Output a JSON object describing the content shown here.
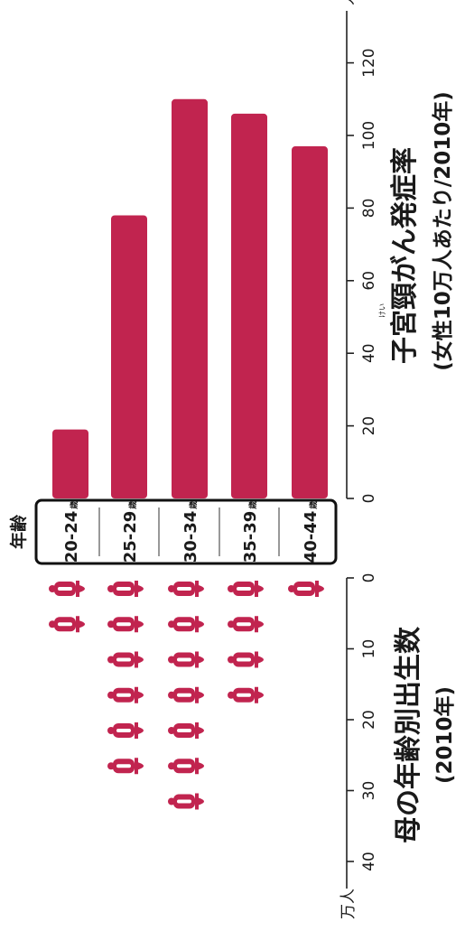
{
  "chart_data": [
    {
      "type": "bar",
      "title": "子宮頸がん発症率",
      "title_ruby": "けい",
      "subtitle": "(女性10万人あたり/2010年)",
      "categories": [
        "20-24歳",
        "25-29歳",
        "30-34歳",
        "35-39歳",
        "40-44歳"
      ],
      "values": [
        19,
        78,
        110,
        106,
        97
      ],
      "unit": "人",
      "ylim": [
        0,
        130
      ],
      "ticks": [
        0,
        20,
        40,
        60,
        80,
        100,
        120
      ],
      "tick_labels": [
        "0",
        "20",
        "40",
        "60",
        "80",
        "100",
        "120"
      ],
      "bar_color": "#c1244f",
      "grid": false
    },
    {
      "type": "pictogram",
      "title": "母の年齢別出生数",
      "subtitle": "(2010年)",
      "categories": [
        "20-24歳",
        "25-29歳",
        "30-34歳",
        "35-39歳",
        "40-44歳"
      ],
      "values": [
        11,
        30,
        35,
        22,
        5
      ],
      "icon": "baby-bottle-icon",
      "icon_value": 5,
      "unit": "万人",
      "ylim": [
        0,
        45
      ],
      "ticks": [
        0,
        10,
        20,
        30,
        40
      ],
      "tick_labels": [
        "0",
        "10",
        "20",
        "30",
        "40"
      ],
      "icon_color": "#c1244f",
      "grid": false
    }
  ],
  "age_axis": {
    "title": "年齢",
    "labels": [
      {
        "range": "20-24",
        "suffix": "歳"
      },
      {
        "range": "25-29",
        "suffix": "歳"
      },
      {
        "range": "30-34",
        "suffix": "歳"
      },
      {
        "range": "35-39",
        "suffix": "歳"
      },
      {
        "range": "40-44",
        "suffix": "歳"
      }
    ]
  }
}
